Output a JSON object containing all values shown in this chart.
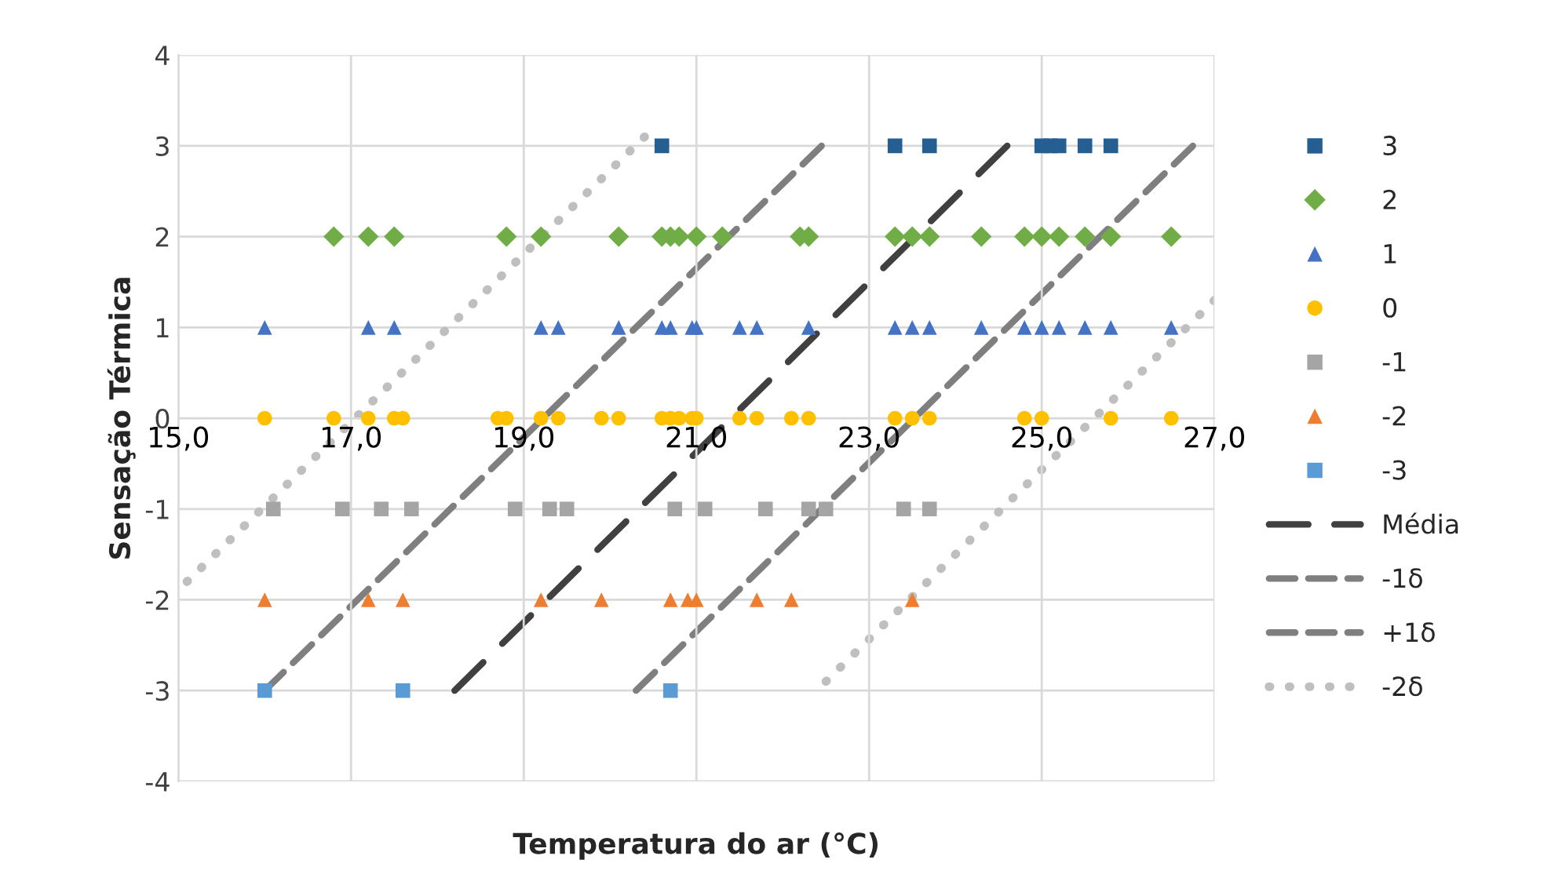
{
  "chart_data": {
    "type": "scatter",
    "xlabel": "Temperatura do ar (°C)",
    "ylabel": "Sensação Térmica",
    "xlim": [
      15,
      27
    ],
    "xticks": [
      {
        "value": 15,
        "label": "15,0"
      },
      {
        "value": 17,
        "label": "17,0"
      },
      {
        "value": 19,
        "label": "19,0"
      },
      {
        "value": 21,
        "label": "21,0"
      },
      {
        "value": 23,
        "label": "23,0"
      },
      {
        "value": 25,
        "label": "25,0"
      },
      {
        "value": 27,
        "label": "27,0"
      }
    ],
    "ylim": [
      -4,
      4
    ],
    "yticks": [
      -4,
      -3,
      -2,
      -1,
      0,
      1,
      2,
      3,
      4
    ],
    "grid": true,
    "legend": "right",
    "series": [
      {
        "name": "3",
        "type": "scatter",
        "marker": "square",
        "color": "#255e91",
        "x": [
          20.6,
          23.3,
          23.7,
          25.0,
          25.1,
          25.2,
          25.5,
          25.8
        ],
        "values": [
          3,
          3,
          3,
          3,
          3,
          3,
          3,
          3
        ]
      },
      {
        "name": "2",
        "marker": "diamond",
        "color": "#70ad47",
        "x": [
          16.8,
          17.2,
          17.5,
          18.8,
          19.2,
          20.1,
          20.6,
          20.7,
          20.8,
          21.0,
          21.3,
          22.2,
          22.3,
          23.3,
          23.5,
          23.7,
          24.3,
          24.8,
          25.0,
          25.2,
          25.5,
          25.8,
          26.5
        ],
        "values": [
          2,
          2,
          2,
          2,
          2,
          2,
          2,
          2,
          2,
          2,
          2,
          2,
          2,
          2,
          2,
          2,
          2,
          2,
          2,
          2,
          2,
          2,
          2
        ]
      },
      {
        "name": "1",
        "marker": "triangle",
        "color": "#4472c4",
        "x": [
          16.0,
          17.2,
          17.5,
          19.2,
          19.4,
          20.1,
          20.6,
          20.7,
          20.95,
          21.0,
          21.5,
          21.7,
          22.3,
          23.3,
          23.5,
          23.7,
          24.3,
          24.8,
          25.0,
          25.2,
          25.5,
          25.8,
          26.5
        ],
        "values": [
          1,
          1,
          1,
          1,
          1,
          1,
          1,
          1,
          1,
          1,
          1,
          1,
          1,
          1,
          1,
          1,
          1,
          1,
          1,
          1,
          1,
          1,
          1
        ]
      },
      {
        "name": "0",
        "marker": "circle",
        "color": "#ffc000",
        "x": [
          16.0,
          16.8,
          17.2,
          17.5,
          17.6,
          18.7,
          18.8,
          19.2,
          19.4,
          19.9,
          20.1,
          20.6,
          20.7,
          20.8,
          20.95,
          21.0,
          21.5,
          21.7,
          22.1,
          22.3,
          23.3,
          23.5,
          23.7,
          24.8,
          25.0,
          25.8,
          26.5
        ],
        "values": [
          0,
          0,
          0,
          0,
          0,
          0,
          0,
          0,
          0,
          0,
          0,
          0,
          0,
          0,
          0,
          0,
          0,
          0,
          0,
          0,
          0,
          0,
          0,
          0,
          0,
          0,
          0
        ]
      },
      {
        "name": "-1",
        "type": "scatter",
        "marker": "square",
        "color": "#a5a5a5",
        "x": [
          16.1,
          16.9,
          17.35,
          17.7,
          18.9,
          19.3,
          19.5,
          20.75,
          21.1,
          21.8,
          22.3,
          22.5,
          23.4,
          23.7
        ],
        "values": [
          -1,
          -1,
          -1,
          -1,
          -1,
          -1,
          -1,
          -1,
          -1,
          -1,
          -1,
          -1,
          -1,
          -1
        ]
      },
      {
        "name": "-2",
        "marker": "triangle",
        "color": "#ed7d31",
        "x": [
          16.0,
          17.2,
          17.6,
          19.2,
          19.9,
          20.7,
          20.9,
          21.0,
          21.7,
          22.1,
          23.5
        ],
        "values": [
          -2,
          -2,
          -2,
          -2,
          -2,
          -2,
          -2,
          -2,
          -2,
          -2,
          -2
        ]
      },
      {
        "name": "-3",
        "marker": "square",
        "color": "#5b9bd5",
        "x": [
          16.0,
          17.6,
          20.7
        ],
        "values": [
          -3,
          -3,
          -3
        ]
      },
      {
        "name": "Média",
        "type": "line",
        "line_style": "longdash",
        "color": "#404040",
        "x": [
          18.2,
          24.6
        ],
        "values": [
          -3,
          3
        ]
      },
      {
        "name": "-1δ",
        "type": "line",
        "line_style": "dashed",
        "color": "#7f7f7f",
        "x": [
          16.0,
          22.45
        ],
        "values": [
          -3,
          3
        ]
      },
      {
        "name": "+1δ",
        "type": "line",
        "line_style": "dashed",
        "color": "#7f7f7f",
        "x": [
          20.3,
          26.75
        ],
        "values": [
          -3,
          3
        ]
      },
      {
        "name": "-2δ",
        "type": "line",
        "line_style": "dotted",
        "color": "#bfbfbf",
        "x": [
          15.1,
          20.4
        ],
        "values": [
          -1.8,
          3.1
        ]
      },
      {
        "type": "line",
        "line_style": "dotted",
        "color": "#bfbfbf",
        "x": [
          22.5,
          27.0
        ],
        "values": [
          -2.9,
          1.3
        ]
      }
    ]
  }
}
